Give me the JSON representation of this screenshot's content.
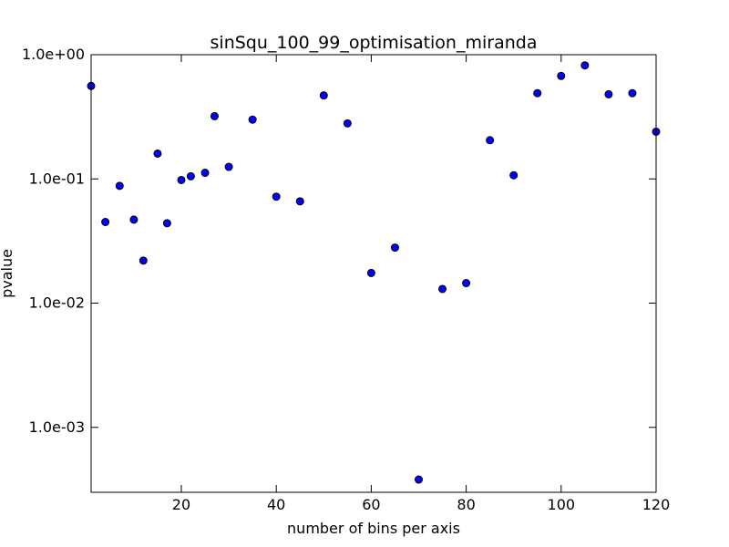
{
  "chart_data": {
    "type": "scatter",
    "title": "sinSqu_100_99_optimisation_miranda",
    "xlabel": "number of bins per axis",
    "ylabel": "pvalue",
    "xlim": [
      1,
      120
    ],
    "ylim": [
      0.0003,
      1.0
    ],
    "yscale": "log",
    "x_ticks": [
      20,
      40,
      60,
      80,
      100,
      120
    ],
    "x_tick_labels": [
      "20",
      "40",
      "60",
      "80",
      "100",
      "120"
    ],
    "y_ticks": [
      1.0,
      0.1,
      0.01,
      0.001
    ],
    "y_tick_labels": [
      "1.0e+00",
      "1.0e-01",
      "1.0e-02",
      "1.0e-03"
    ],
    "marker_color": "#0000ff",
    "series": [
      {
        "name": "pvalue",
        "x": [
          1,
          4,
          7,
          10,
          12,
          15,
          17,
          20,
          22,
          25,
          27,
          30,
          35,
          40,
          45,
          50,
          55,
          60,
          65,
          70,
          75,
          80,
          85,
          90,
          95,
          100,
          105,
          110,
          115,
          120
        ],
        "y": [
          0.56,
          0.045,
          0.088,
          0.047,
          0.022,
          0.16,
          0.044,
          0.098,
          0.105,
          0.112,
          0.32,
          0.125,
          0.3,
          0.072,
          0.066,
          0.47,
          0.28,
          0.0175,
          0.028,
          0.00038,
          0.013,
          0.0145,
          0.205,
          0.107,
          0.49,
          0.675,
          0.82,
          0.48,
          0.49,
          0.24
        ]
      }
    ]
  }
}
